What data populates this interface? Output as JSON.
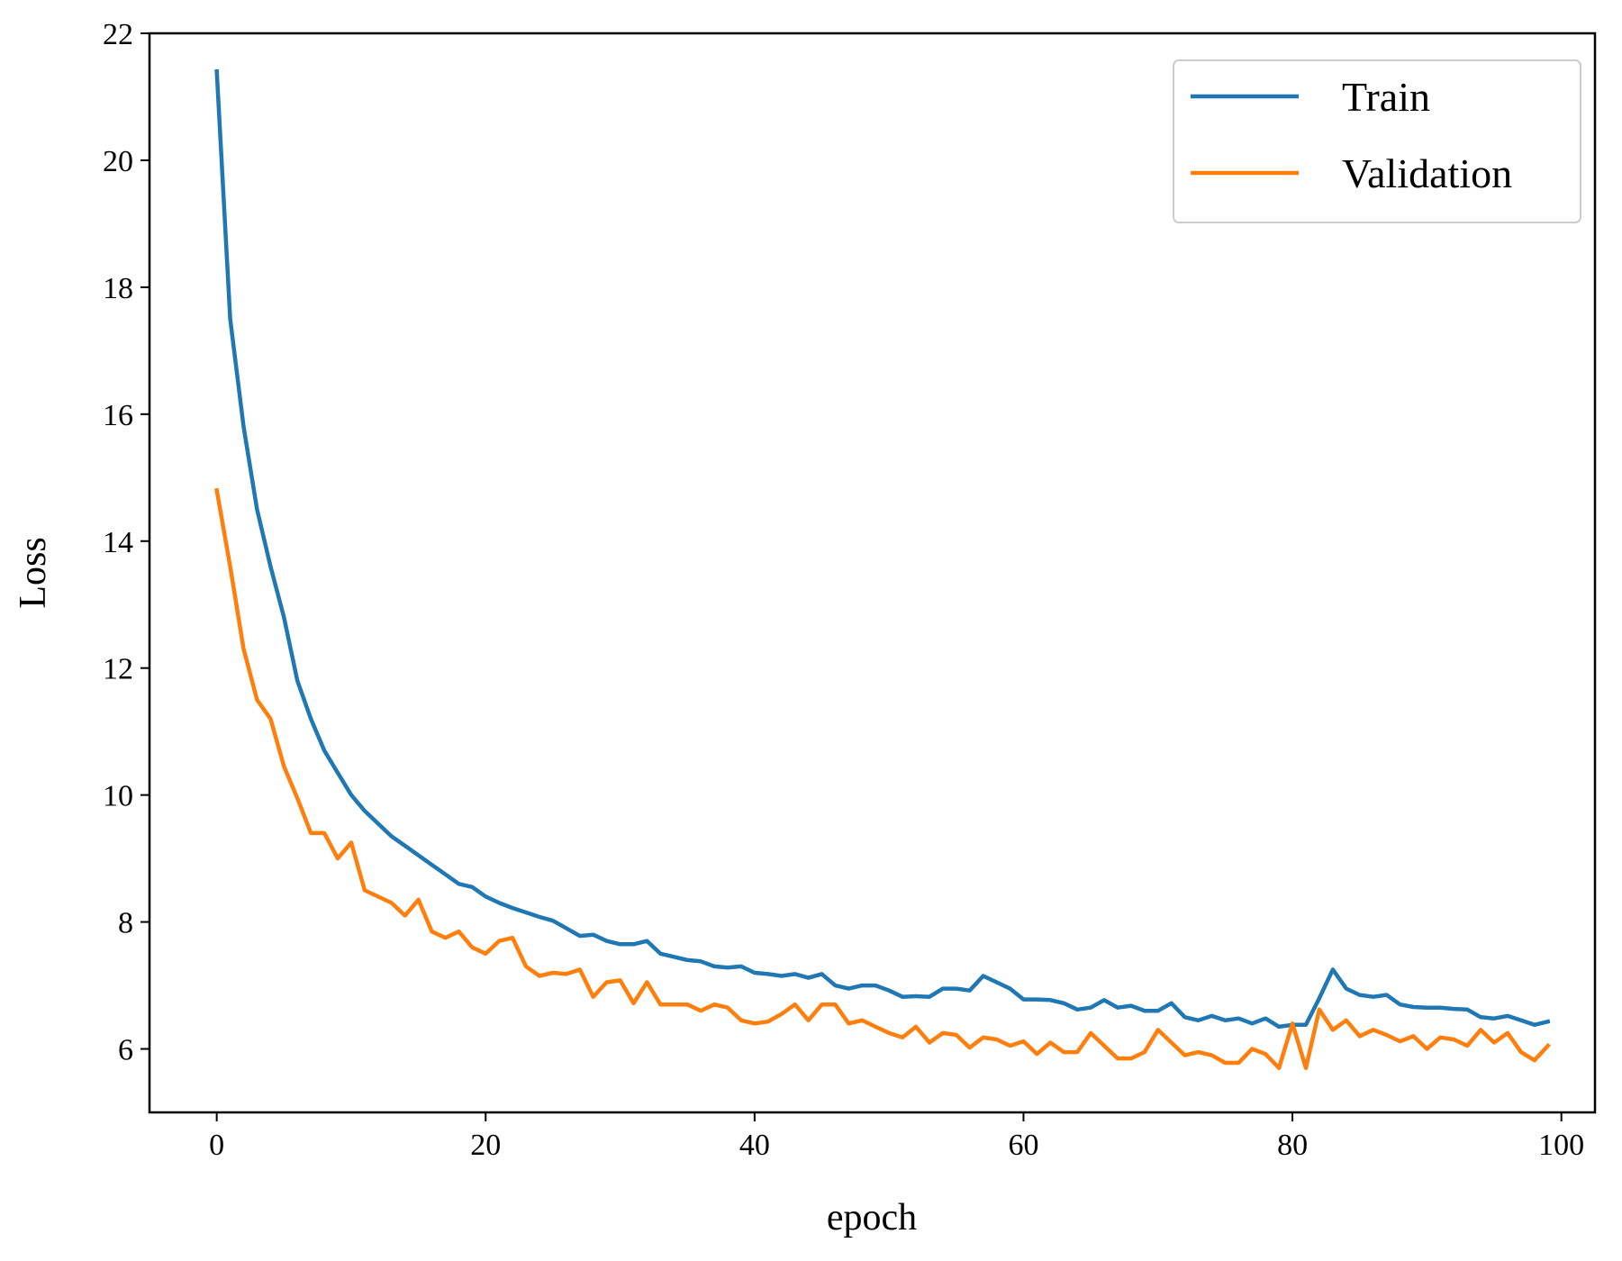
{
  "chart_data": {
    "type": "line",
    "xlabel": "epoch",
    "ylabel": "Loss",
    "xlim": [
      -5,
      102.5
    ],
    "ylim": [
      5,
      22
    ],
    "xticks": [
      "0",
      "20",
      "40",
      "60",
      "80",
      "100"
    ],
    "yticks": [
      "6",
      "8",
      "10",
      "12",
      "14",
      "16",
      "18",
      "20",
      "22"
    ],
    "grid": false,
    "legend_position": "top-right",
    "series": [
      {
        "name": "Train",
        "color": "#1f77b4",
        "x": [
          0,
          1,
          2,
          3,
          4,
          5,
          6,
          7,
          8,
          9,
          10,
          11,
          12,
          13,
          14,
          15,
          16,
          17,
          18,
          19,
          20,
          21,
          22,
          23,
          24,
          25,
          26,
          27,
          28,
          29,
          30,
          31,
          32,
          33,
          34,
          35,
          36,
          37,
          38,
          39,
          40,
          41,
          42,
          43,
          44,
          45,
          46,
          47,
          48,
          49,
          50,
          51,
          52,
          53,
          54,
          55,
          56,
          57,
          58,
          59,
          60,
          61,
          62,
          63,
          64,
          65,
          66,
          67,
          68,
          69,
          70,
          71,
          72,
          73,
          74,
          75,
          76,
          77,
          78,
          79,
          80,
          81,
          82,
          83,
          84,
          85,
          86,
          87,
          88,
          89,
          90,
          91,
          92,
          93,
          94,
          95,
          96,
          97,
          98,
          99
        ],
        "values": [
          21.4,
          17.5,
          15.8,
          14.5,
          13.6,
          12.8,
          11.8,
          11.2,
          10.7,
          10.35,
          10.0,
          9.75,
          9.55,
          9.35,
          9.2,
          9.05,
          8.9,
          8.75,
          8.6,
          8.55,
          8.4,
          8.3,
          8.22,
          8.15,
          8.08,
          8.02,
          7.9,
          7.78,
          7.8,
          7.7,
          7.65,
          7.65,
          7.7,
          7.5,
          7.45,
          7.4,
          7.38,
          7.3,
          7.28,
          7.3,
          7.2,
          7.18,
          7.15,
          7.18,
          7.12,
          7.18,
          7.0,
          6.95,
          7.0,
          7.0,
          6.92,
          6.82,
          6.83,
          6.82,
          6.95,
          6.95,
          6.92,
          7.15,
          7.05,
          6.95,
          6.78,
          6.78,
          6.77,
          6.72,
          6.62,
          6.65,
          6.77,
          6.65,
          6.68,
          6.6,
          6.6,
          6.72,
          6.5,
          6.45,
          6.52,
          6.45,
          6.48,
          6.4,
          6.48,
          6.35,
          6.38,
          6.38,
          6.8,
          7.25,
          6.95,
          6.85,
          6.82,
          6.85,
          6.7,
          6.66,
          6.65,
          6.65,
          6.63,
          6.62,
          6.5,
          6.48,
          6.52,
          6.45,
          6.38,
          6.43
        ]
      },
      {
        "name": "Validation",
        "color": "#ff7f0e",
        "x": [
          0,
          1,
          2,
          3,
          4,
          5,
          6,
          7,
          8,
          9,
          10,
          11,
          12,
          13,
          14,
          15,
          16,
          17,
          18,
          19,
          20,
          21,
          22,
          23,
          24,
          25,
          26,
          27,
          28,
          29,
          30,
          31,
          32,
          33,
          34,
          35,
          36,
          37,
          38,
          39,
          40,
          41,
          42,
          43,
          44,
          45,
          46,
          47,
          48,
          49,
          50,
          51,
          52,
          53,
          54,
          55,
          56,
          57,
          58,
          59,
          60,
          61,
          62,
          63,
          64,
          65,
          66,
          67,
          68,
          69,
          70,
          71,
          72,
          73,
          74,
          75,
          76,
          77,
          78,
          79,
          80,
          81,
          82,
          83,
          84,
          85,
          86,
          87,
          88,
          89,
          90,
          91,
          92,
          93,
          94,
          95,
          96,
          97,
          98,
          99
        ],
        "values": [
          14.8,
          13.6,
          12.3,
          11.5,
          11.2,
          10.45,
          9.95,
          9.4,
          9.4,
          9.0,
          9.25,
          8.5,
          8.4,
          8.3,
          8.1,
          8.35,
          7.85,
          7.75,
          7.85,
          7.6,
          7.5,
          7.7,
          7.75,
          7.3,
          7.15,
          7.2,
          7.18,
          7.25,
          6.82,
          7.05,
          7.08,
          6.72,
          7.05,
          6.7,
          6.7,
          6.7,
          6.6,
          6.7,
          6.65,
          6.45,
          6.4,
          6.43,
          6.55,
          6.7,
          6.45,
          6.7,
          6.7,
          6.4,
          6.45,
          6.35,
          6.25,
          6.18,
          6.35,
          6.1,
          6.25,
          6.22,
          6.02,
          6.18,
          6.15,
          6.05,
          6.12,
          5.92,
          6.1,
          5.95,
          5.95,
          6.25,
          6.05,
          5.85,
          5.85,
          5.95,
          6.3,
          6.1,
          5.9,
          5.95,
          5.9,
          5.78,
          5.78,
          6.0,
          5.92,
          5.7,
          6.4,
          5.7,
          6.62,
          6.3,
          6.45,
          6.2,
          6.3,
          6.22,
          6.12,
          6.2,
          6.0,
          6.18,
          6.15,
          6.05,
          6.3,
          6.1,
          6.25,
          5.95,
          5.82,
          6.05
        ]
      }
    ]
  }
}
